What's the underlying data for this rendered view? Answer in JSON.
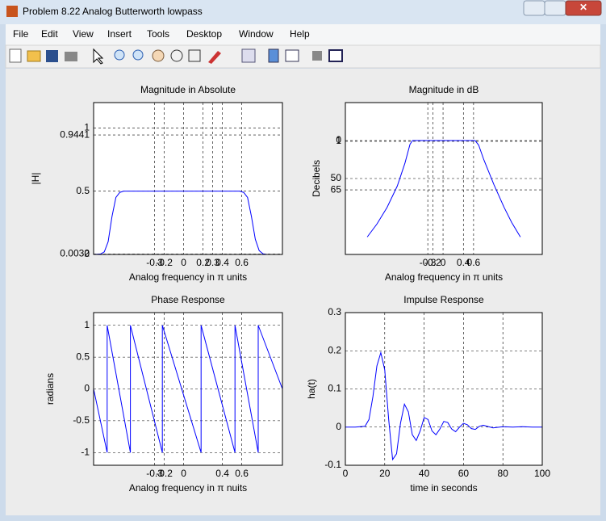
{
  "window": {
    "title": "Problem 8.22 Analog Butterworth lowpass"
  },
  "menu": [
    "File",
    "Edit",
    "View",
    "Insert",
    "Tools",
    "Desktop",
    "Window",
    "Help"
  ],
  "chart_data": [
    {
      "type": "line",
      "title": "Magnitude in Absolute",
      "xlabel": "Analog frequency in π units",
      "ylabel": "|H|",
      "x": [
        -0.93,
        -0.86,
        -0.82,
        -0.78,
        -0.74,
        -0.7,
        -0.66,
        -0.62,
        0,
        0.58,
        0.62,
        0.66,
        0.7,
        0.74,
        0.78,
        0.82,
        0.86,
        1.02
      ],
      "values": [
        0,
        0.003,
        0.02,
        0.1,
        0.3,
        0.45,
        0.49,
        0.5,
        0.5,
        0.5,
        0.49,
        0.45,
        0.3,
        0.12,
        0.03,
        0.005,
        0,
        0
      ],
      "color": "#0000ff",
      "grid": true,
      "xlim": [
        -0.93,
        1.02
      ],
      "xticks": [
        -0.3,
        -0.2,
        0,
        0.2,
        0.3,
        0.4,
        0.6
      ],
      "ylim": [
        0,
        1.2
      ],
      "yticks": [
        0,
        0.0032,
        0.5,
        0.9441,
        1
      ]
    },
    {
      "type": "line",
      "title": "Magnitude in dB",
      "xlabel": "Analog frequency in π units",
      "ylabel": "Decibels",
      "x": [
        -1.49,
        -1.3,
        -1.1,
        -0.9,
        -0.75,
        -0.65,
        -0.6,
        0,
        0.63,
        0.7,
        0.8,
        1.0,
        1.2,
        1.35,
        1.52
      ],
      "values": [
        -127,
        -110,
        -88,
        -60,
        -30,
        -5,
        0,
        0,
        0,
        -6,
        -25,
        -58,
        -88,
        -108,
        -127
      ],
      "color": "#0000ff",
      "grid": true,
      "xlim": [
        -1.92,
        1.95
      ],
      "xticks": [
        -0.3,
        -0.2,
        0,
        0.4,
        0.6
      ],
      "ylim": [
        -150,
        50
      ],
      "yticks": [
        {
          "value": -65,
          "label": "65"
        },
        {
          "value": -50,
          "label": "50"
        },
        {
          "value": -1,
          "label": "1"
        },
        0
      ]
    },
    {
      "type": "line",
      "title": "Phase Response",
      "xlabel": "Analog frequency in π nuits",
      "ylabel": "radians",
      "x": [
        -0.93,
        -0.79,
        -0.79,
        -0.55,
        -0.55,
        -0.22,
        -0.22,
        0.18,
        0.18,
        0.53,
        0.53,
        0.77,
        0.77,
        1.02
      ],
      "values": [
        0,
        -1,
        1,
        -1,
        1,
        -1,
        1,
        -1,
        1,
        -1,
        1,
        -1,
        1,
        0
      ],
      "color": "#0000ff",
      "grid": true,
      "xlim": [
        -0.93,
        1.02
      ],
      "xticks": [
        -0.3,
        -0.2,
        0,
        0.4,
        0.6
      ],
      "ylim": [
        -1.2,
        1.2
      ],
      "yticks": [
        -1,
        -0.5,
        0,
        0.5,
        1
      ]
    },
    {
      "type": "line",
      "title": "Impulse Response",
      "xlabel": "time in seconds",
      "ylabel": "ha(t)",
      "x": [
        0,
        5,
        10,
        12,
        14,
        16,
        18,
        20,
        22,
        24,
        26,
        28,
        30,
        32,
        34,
        36,
        38,
        40,
        42,
        44,
        46,
        48,
        50,
        52,
        54,
        56,
        58,
        60,
        62,
        64,
        66,
        68,
        70,
        75,
        80,
        85,
        90,
        95,
        100
      ],
      "values": [
        0,
        0,
        0.002,
        0.02,
        0.08,
        0.16,
        0.195,
        0.15,
        0.02,
        -0.085,
        -0.07,
        0.01,
        0.06,
        0.04,
        -0.02,
        -0.035,
        -0.01,
        0.025,
        0.02,
        -0.01,
        -0.02,
        -0.005,
        0.015,
        0.012,
        -0.005,
        -0.012,
        0,
        0.01,
        0.006,
        -0.004,
        -0.006,
        0.002,
        0.005,
        -0.002,
        0.001,
        0,
        0.001,
        0,
        0
      ],
      "color": "#0000ff",
      "grid": true,
      "xlim": [
        0,
        100
      ],
      "xticks": [
        0,
        20,
        40,
        60,
        80,
        100
      ],
      "ylim": [
        -0.1,
        0.3
      ],
      "yticks": [
        -0.1,
        0,
        0.1,
        0.2,
        0.3
      ]
    }
  ]
}
